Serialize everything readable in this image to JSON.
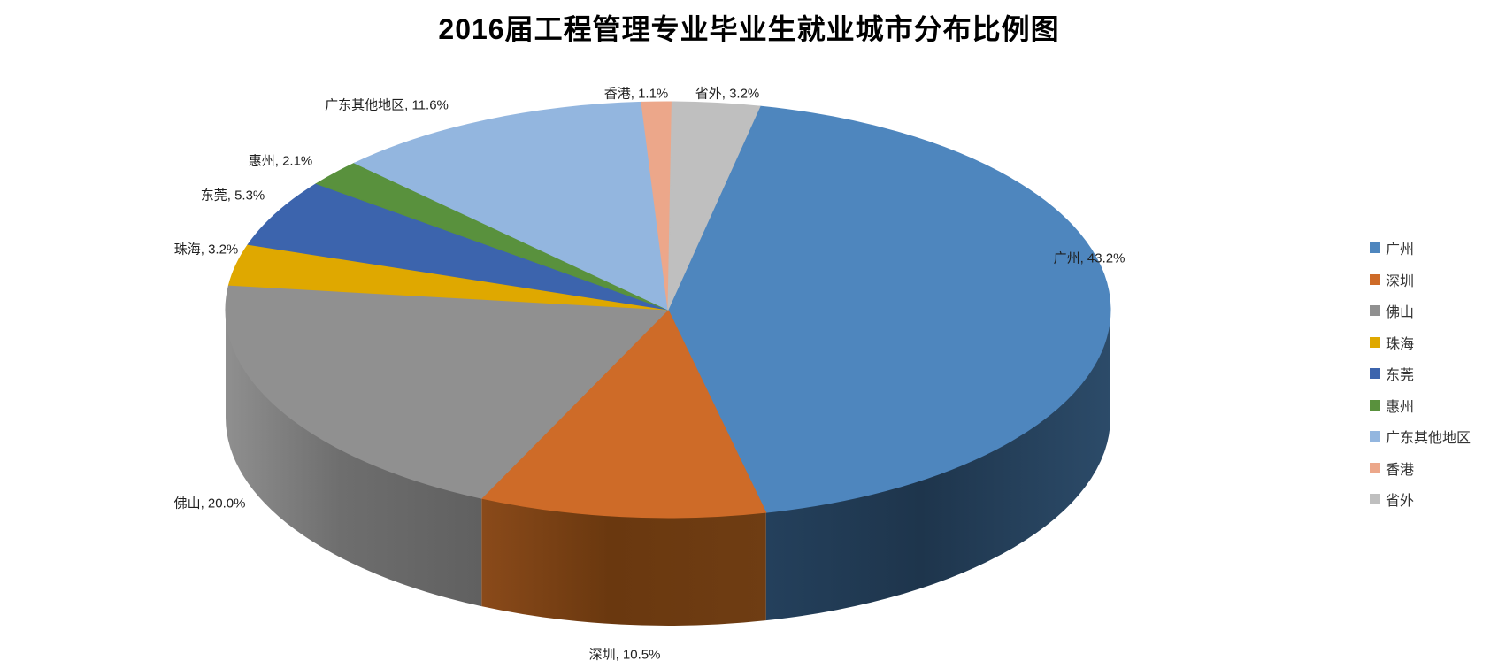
{
  "title": "2016届工程管理专业毕业生就业城市分布比例图",
  "chart_data": {
    "type": "pie",
    "style": "3d-exploded-none",
    "title": "2016届工程管理专业毕业生就业城市分布比例图",
    "legend_position": "right",
    "start_angle_deg": 12,
    "unit": "%",
    "slices": [
      {
        "name": "广州",
        "slug": "guangzhou",
        "value": 43.2,
        "label": "广州, 43.2%",
        "color": "#4E86BE",
        "side": [
          "#2C4B69",
          "#1E354C",
          "#24405C"
        ]
      },
      {
        "name": "深圳",
        "slug": "shenzhen",
        "value": 10.5,
        "label": "深圳, 10.5%",
        "color": "#CE6B28",
        "side": [
          "#6F3D13",
          "#6A380F",
          "#8A4A1A"
        ]
      },
      {
        "name": "佛山",
        "slug": "foshan",
        "value": 20.0,
        "label": "佛山, 20.0%",
        "color": "#909090",
        "side": [
          "#606060",
          "#6E6E6E",
          "#8F8F8F"
        ]
      },
      {
        "name": "珠海",
        "slug": "zhuhai",
        "value": 3.2,
        "label": "珠海, 3.2%",
        "color": "#DFA800",
        "side": [
          "#8A6800",
          "#8A6800",
          "#8A6800"
        ]
      },
      {
        "name": "东莞",
        "slug": "dongguan",
        "value": 5.3,
        "label": "东莞, 5.3%",
        "color": "#3C64AD",
        "side": [
          "#24406E",
          "#24406E",
          "#24406E"
        ]
      },
      {
        "name": "惠州",
        "slug": "huizhou",
        "value": 2.1,
        "label": "惠州, 2.1%",
        "color": "#59913D",
        "side": [
          "#375C25",
          "#375C25",
          "#375C25"
        ]
      },
      {
        "name": "广东其他地区",
        "slug": "guangdong-other",
        "value": 11.6,
        "label": "广东其他地区, 11.6%",
        "color": "#93B6DF",
        "side": [
          "#5F7FA3",
          "#5F7FA3",
          "#5F7FA3"
        ]
      },
      {
        "name": "香港",
        "slug": "hongkong",
        "value": 1.1,
        "label": "香港, 1.1%",
        "color": "#ECA78A",
        "side": [
          "#B0704F",
          "#B0704F",
          "#B0704F"
        ]
      },
      {
        "name": "省外",
        "slug": "outside-province",
        "value": 3.2,
        "label": "省外, 3.2%",
        "color": "#BFBFBF",
        "side": [
          "#8C8C8C",
          "#8C8C8C",
          "#8C8C8C"
        ]
      }
    ]
  }
}
